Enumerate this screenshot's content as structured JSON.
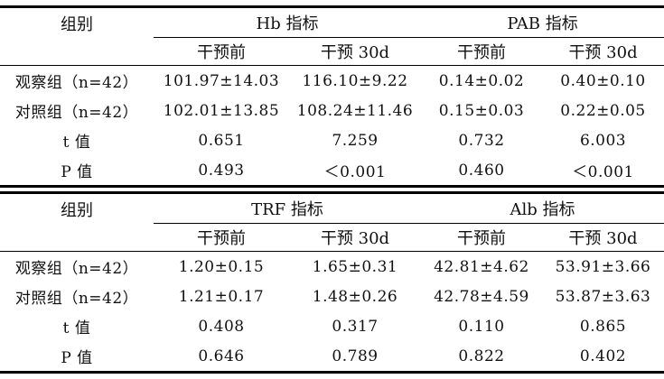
{
  "table1": {
    "group_header": "组别",
    "hb_header": "Hb 指标",
    "pab_header": "PAB 指标",
    "sub_headers": [
      "干预前",
      "干预 30d",
      "干预前",
      "干预 30d"
    ],
    "rows": [
      {
        "label": "观察组（n=42）",
        "values": [
          "101.97±14.03",
          "116.10±9.22",
          "0.14±0.02",
          "0.40±0.10"
        ]
      },
      {
        "label": "对照组（n=42）",
        "values": [
          "102.01±13.85",
          "108.24±11.46",
          "0.15±0.03",
          "0.22±0.05"
        ]
      },
      {
        "label": "t 值",
        "values": [
          "0.651",
          "7.259",
          "0.732",
          "6.003"
        ]
      },
      {
        "label": "P 值",
        "values": [
          "0.493",
          "＜0.001",
          "0.460",
          "＜0.001"
        ]
      }
    ]
  },
  "table2": {
    "group_header": "组别",
    "trf_header": "TRF 指标",
    "alb_header": "Alb 指标",
    "sub_headers": [
      "干预前",
      "干预 30d",
      "干预前",
      "干预 30d"
    ],
    "rows": [
      {
        "label": "观察组（n=42）",
        "values": [
          "1.20±0.15",
          "1.65±0.31",
          "42.81±4.62",
          "53.91±3.66"
        ]
      },
      {
        "label": "对照组（n=42）",
        "values": [
          "1.21±0.17",
          "1.48±0.26",
          "42.78±4.59",
          "53.87±3.63"
        ]
      },
      {
        "label": "t 值",
        "values": [
          "0.408",
          "0.317",
          "0.110",
          "0.865"
        ]
      },
      {
        "label": "P 值",
        "values": [
          "0.646",
          "0.789",
          "0.822",
          "0.402"
        ]
      }
    ]
  }
}
